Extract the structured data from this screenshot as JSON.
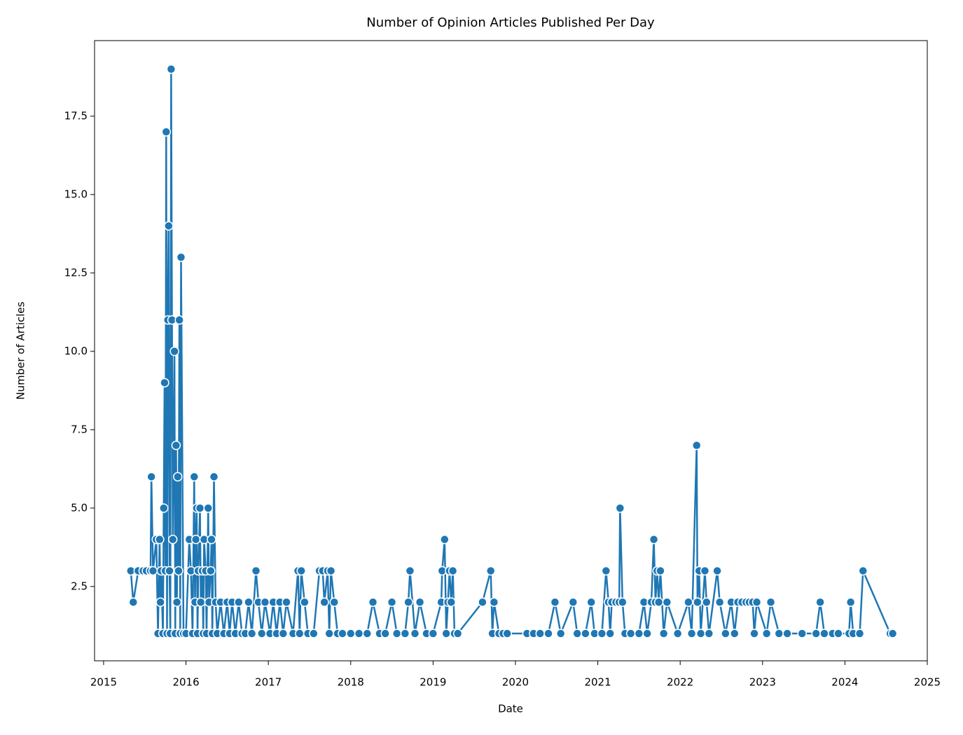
{
  "chart_data": {
    "type": "line",
    "title": "Number of Opinion Articles Published Per Day",
    "x_label": "Date",
    "y_label": "Number of Articles",
    "x": [
      2015.33,
      2015.36,
      2015.42,
      2015.48,
      2015.52,
      2015.57,
      2015.58,
      2015.6,
      2015.64,
      2015.66,
      2015.68,
      2015.69,
      2015.7,
      2015.72,
      2015.73,
      2015.74,
      2015.75,
      2015.76,
      2015.77,
      2015.78,
      2015.79,
      2015.8,
      2015.81,
      2015.82,
      2015.83,
      2015.84,
      2015.86,
      2015.87,
      2015.88,
      2015.89,
      2015.9,
      2015.91,
      2015.92,
      2015.93,
      2015.94,
      2015.97,
      2016.0,
      2016.04,
      2016.06,
      2016.08,
      2016.1,
      2016.11,
      2016.12,
      2016.13,
      2016.14,
      2016.15,
      2016.17,
      2016.18,
      2016.2,
      2016.21,
      2016.22,
      2016.24,
      2016.25,
      2016.27,
      2016.28,
      2016.3,
      2016.31,
      2016.32,
      2016.34,
      2016.36,
      2016.38,
      2016.42,
      2016.46,
      2016.5,
      2016.53,
      2016.56,
      2016.6,
      2016.64,
      2016.68,
      2016.72,
      2016.76,
      2016.8,
      2016.85,
      2016.88,
      2016.92,
      2016.96,
      2017.02,
      2017.06,
      2017.1,
      2017.14,
      2017.18,
      2017.22,
      2017.3,
      2017.36,
      2017.38,
      2017.4,
      2017.44,
      2017.48,
      2017.55,
      2017.62,
      2017.66,
      2017.68,
      2017.72,
      2017.74,
      2017.76,
      2017.8,
      2017.84,
      2017.9,
      2018.0,
      2018.1,
      2018.2,
      2018.27,
      2018.35,
      2018.42,
      2018.5,
      2018.56,
      2018.66,
      2018.7,
      2018.72,
      2018.78,
      2018.84,
      2018.92,
      2019.0,
      2019.1,
      2019.11,
      2019.14,
      2019.16,
      2019.18,
      2019.2,
      2019.22,
      2019.24,
      2019.26,
      2019.3,
      2019.6,
      2019.7,
      2019.72,
      2019.74,
      2019.8,
      2019.85,
      2019.9,
      2020.14,
      2020.22,
      2020.3,
      2020.4,
      2020.48,
      2020.55,
      2020.7,
      2020.75,
      2020.85,
      2020.92,
      2020.96,
      2021.05,
      2021.1,
      2021.13,
      2021.15,
      2021.17,
      2021.22,
      2021.26,
      2021.27,
      2021.3,
      2021.33,
      2021.4,
      2021.5,
      2021.56,
      2021.6,
      2021.65,
      2021.68,
      2021.7,
      2021.72,
      2021.74,
      2021.76,
      2021.8,
      2021.84,
      2021.97,
      2022.1,
      2022.14,
      2022.2,
      2022.21,
      2022.23,
      2022.25,
      2022.3,
      2022.32,
      2022.35,
      2022.45,
      2022.48,
      2022.55,
      2022.62,
      2022.66,
      2022.7,
      2022.75,
      2022.8,
      2022.84,
      2022.88,
      2022.9,
      2022.93,
      2023.05,
      2023.1,
      2023.2,
      2023.3,
      2023.48,
      2023.65,
      2023.7,
      2023.75,
      2023.85,
      2023.92,
      2024.05,
      2024.07,
      2024.1,
      2024.18,
      2024.22,
      2024.55,
      2024.58
    ],
    "series": [
      {
        "name": "Articles",
        "color": "#1f77b4",
        "values": [
          3,
          2,
          3,
          3,
          3,
          3,
          6,
          3,
          4,
          1,
          4,
          2,
          3,
          1,
          5,
          9,
          3,
          17,
          1,
          11,
          14,
          3,
          1,
          19,
          11,
          4,
          10,
          1,
          7,
          2,
          6,
          3,
          11,
          1,
          13,
          1,
          1,
          4,
          3,
          1,
          6,
          2,
          4,
          5,
          1,
          3,
          5,
          2,
          3,
          1,
          4,
          3,
          1,
          5,
          2,
          3,
          4,
          1,
          6,
          2,
          1,
          2,
          1,
          2,
          1,
          2,
          1,
          2,
          1,
          1,
          2,
          1,
          3,
          2,
          1,
          2,
          1,
          2,
          1,
          2,
          1,
          2,
          1,
          3,
          1,
          3,
          2,
          1,
          1,
          3,
          3,
          2,
          3,
          1,
          3,
          2,
          1,
          1,
          1,
          1,
          1,
          2,
          1,
          1,
          2,
          1,
          1,
          2,
          3,
          1,
          2,
          1,
          1,
          2,
          3,
          4,
          1,
          2,
          3,
          2,
          3,
          1,
          1,
          2,
          3,
          1,
          2,
          1,
          1,
          1,
          1,
          1,
          1,
          1,
          2,
          1,
          2,
          1,
          1,
          2,
          1,
          1,
          3,
          2,
          1,
          2,
          2,
          2,
          5,
          2,
          1,
          1,
          1,
          2,
          1,
          2,
          4,
          2,
          3,
          2,
          3,
          1,
          2,
          1,
          2,
          1,
          7,
          2,
          3,
          1,
          3,
          2,
          1,
          3,
          2,
          1,
          2,
          1,
          2,
          2,
          2,
          2,
          2,
          1,
          2,
          1,
          2,
          1,
          1,
          1,
          1,
          2,
          1,
          1,
          1,
          1,
          2,
          1,
          1,
          3,
          1,
          1
        ]
      }
    ],
    "xlim": [
      2014.89,
      2025.0
    ],
    "xticks": [
      2015,
      2016,
      2017,
      2018,
      2019,
      2020,
      2021,
      2022,
      2023,
      2024,
      2025
    ],
    "ylim": [
      0.13,
      19.91
    ],
    "yticks": [
      2.5,
      {
        "value": 5,
        "label": "5.0"
      },
      7.5,
      {
        "value": 10,
        "label": "10.0"
      },
      12.5,
      {
        "value": 15,
        "label": "15.0"
      },
      17.5
    ]
  }
}
